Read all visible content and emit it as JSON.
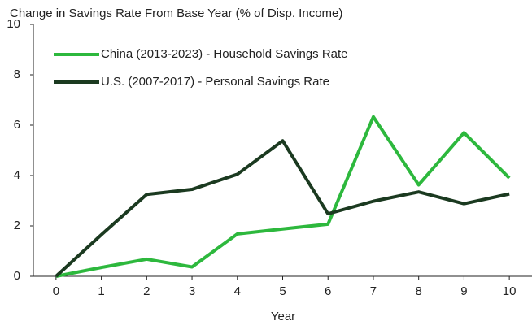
{
  "chart_data": {
    "type": "line",
    "title": "Change in Savings Rate From Base Year (% of Disp. Income)",
    "x_label": "Year",
    "x": [
      0,
      1,
      2,
      3,
      4,
      5,
      6,
      7,
      8,
      9,
      10
    ],
    "series": [
      {
        "name": "China (2013-2023) - Household Savings Rate",
        "color": "#2db83d",
        "values": [
          0,
          0.35,
          0.68,
          0.37,
          1.68,
          1.88,
          2.07,
          6.33,
          3.63,
          5.7,
          3.9
        ]
      },
      {
        "name": "U.S. (2007-2017) - Personal Savings Rate",
        "color": "#1b3a20",
        "values": [
          0,
          1.65,
          3.25,
          3.45,
          4.05,
          5.38,
          2.48,
          2.98,
          3.35,
          2.88,
          3.27
        ]
      }
    ],
    "xlim": [
      -0.5,
      10.5
    ],
    "xticks": [
      0,
      1,
      2,
      3,
      4,
      5,
      6,
      7,
      8,
      9,
      10
    ],
    "ylim": [
      0,
      10
    ],
    "yticks": [
      0,
      2,
      4,
      6,
      8,
      10
    ],
    "grid": false,
    "legend": "upper left"
  }
}
